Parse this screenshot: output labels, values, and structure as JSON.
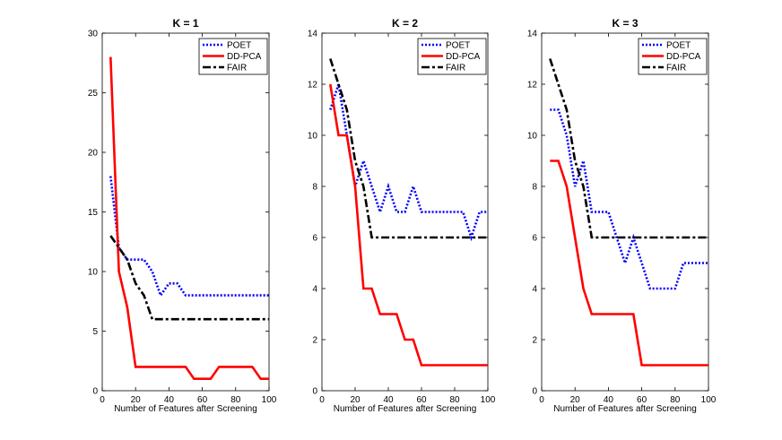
{
  "chart_data": [
    {
      "type": "line",
      "title": "K = 1",
      "xlabel": "Number of Features after Screening",
      "ylabel": "",
      "xlim": [
        0,
        100
      ],
      "ylim": [
        0,
        30
      ],
      "xticks": [
        "0",
        "20",
        "40",
        "60",
        "80",
        "100"
      ],
      "yticks": [
        "0",
        "5",
        "10",
        "15",
        "20",
        "25",
        "30"
      ],
      "legend": "top-right",
      "series": [
        {
          "name": "POET",
          "color": "#0000ff",
          "style": "dotted",
          "x": [
            5,
            10,
            15,
            20,
            25,
            30,
            35,
            40,
            45,
            50,
            55,
            60,
            65,
            70,
            75,
            80,
            85,
            90,
            95,
            100
          ],
          "y": [
            18,
            12,
            11,
            11,
            11,
            10,
            8,
            9,
            9,
            8,
            8,
            8,
            8,
            8,
            8,
            8,
            8,
            8,
            8,
            8
          ]
        },
        {
          "name": "DD-PCA",
          "color": "#ff0000",
          "style": "solid",
          "x": [
            5,
            10,
            15,
            20,
            25,
            30,
            35,
            40,
            45,
            50,
            55,
            60,
            65,
            70,
            75,
            80,
            85,
            90,
            95,
            100
          ],
          "y": [
            28,
            10,
            7,
            2,
            2,
            2,
            2,
            2,
            2,
            2,
            1,
            1,
            1,
            2,
            2,
            2,
            2,
            2,
            1,
            1
          ]
        },
        {
          "name": "FAIR",
          "color": "#000000",
          "style": "dashdot",
          "x": [
            5,
            10,
            15,
            20,
            25,
            30,
            35,
            40,
            45,
            50,
            55,
            60,
            65,
            70,
            75,
            80,
            85,
            90,
            95,
            100
          ],
          "y": [
            13,
            12,
            11,
            9,
            8,
            6,
            6,
            6,
            6,
            6,
            6,
            6,
            6,
            6,
            6,
            6,
            6,
            6,
            6,
            6
          ]
        }
      ]
    },
    {
      "type": "line",
      "title": "K = 2",
      "xlabel": "Number of Features after Screening",
      "ylabel": "",
      "xlim": [
        0,
        100
      ],
      "ylim": [
        0,
        14
      ],
      "xticks": [
        "0",
        "20",
        "40",
        "60",
        "80",
        "100"
      ],
      "yticks": [
        "0",
        "2",
        "4",
        "6",
        "8",
        "10",
        "12",
        "14"
      ],
      "legend": "top-right",
      "series": [
        {
          "name": "POET",
          "color": "#0000ff",
          "style": "dotted",
          "x": [
            5,
            10,
            15,
            20,
            25,
            30,
            35,
            40,
            45,
            50,
            55,
            60,
            65,
            70,
            75,
            80,
            85,
            90,
            95,
            100
          ],
          "y": [
            11,
            12,
            10,
            8,
            9,
            8,
            7,
            8,
            7,
            7,
            8,
            7,
            7,
            7,
            7,
            7,
            7,
            6,
            7,
            7
          ]
        },
        {
          "name": "DD-PCA",
          "color": "#ff0000",
          "style": "solid",
          "x": [
            5,
            10,
            15,
            20,
            25,
            30,
            35,
            40,
            45,
            50,
            55,
            60,
            65,
            70,
            75,
            80,
            85,
            90,
            95,
            100
          ],
          "y": [
            12,
            10,
            10,
            8,
            4,
            4,
            3,
            3,
            3,
            2,
            2,
            1,
            1,
            1,
            1,
            1,
            1,
            1,
            1,
            1
          ]
        },
        {
          "name": "FAIR",
          "color": "#000000",
          "style": "dashdot",
          "x": [
            5,
            10,
            15,
            20,
            25,
            30,
            35,
            40,
            45,
            50,
            55,
            60,
            65,
            70,
            75,
            80,
            85,
            90,
            95,
            100
          ],
          "y": [
            13,
            12,
            11,
            9,
            8,
            6,
            6,
            6,
            6,
            6,
            6,
            6,
            6,
            6,
            6,
            6,
            6,
            6,
            6,
            6
          ]
        }
      ]
    },
    {
      "type": "line",
      "title": "K = 3",
      "xlabel": "Number of Features after Screening",
      "ylabel": "",
      "xlim": [
        0,
        100
      ],
      "ylim": [
        0,
        14
      ],
      "xticks": [
        "0",
        "20",
        "40",
        "60",
        "80",
        "100"
      ],
      "yticks": [
        "0",
        "2",
        "4",
        "6",
        "8",
        "10",
        "12",
        "14"
      ],
      "legend": "top-right",
      "series": [
        {
          "name": "POET",
          "color": "#0000ff",
          "style": "dotted",
          "x": [
            5,
            10,
            15,
            20,
            25,
            30,
            35,
            40,
            45,
            50,
            55,
            60,
            65,
            70,
            75,
            80,
            85,
            90,
            95,
            100
          ],
          "y": [
            11,
            11,
            10,
            8,
            9,
            7,
            7,
            7,
            6,
            5,
            6,
            5,
            4,
            4,
            4,
            4,
            5,
            5,
            5,
            5
          ]
        },
        {
          "name": "DD-PCA",
          "color": "#ff0000",
          "style": "solid",
          "x": [
            5,
            10,
            15,
            20,
            25,
            30,
            35,
            40,
            45,
            50,
            55,
            60,
            65,
            70,
            75,
            80,
            85,
            90,
            95,
            100
          ],
          "y": [
            9,
            9,
            8,
            6,
            4,
            3,
            3,
            3,
            3,
            3,
            3,
            1,
            1,
            1,
            1,
            1,
            1,
            1,
            1,
            1
          ]
        },
        {
          "name": "FAIR",
          "color": "#000000",
          "style": "dashdot",
          "x": [
            5,
            10,
            15,
            20,
            25,
            30,
            35,
            40,
            45,
            50,
            55,
            60,
            65,
            70,
            75,
            80,
            85,
            90,
            95,
            100
          ],
          "y": [
            13,
            12,
            11,
            9,
            8,
            6,
            6,
            6,
            6,
            6,
            6,
            6,
            6,
            6,
            6,
            6,
            6,
            6,
            6,
            6
          ]
        }
      ]
    }
  ]
}
